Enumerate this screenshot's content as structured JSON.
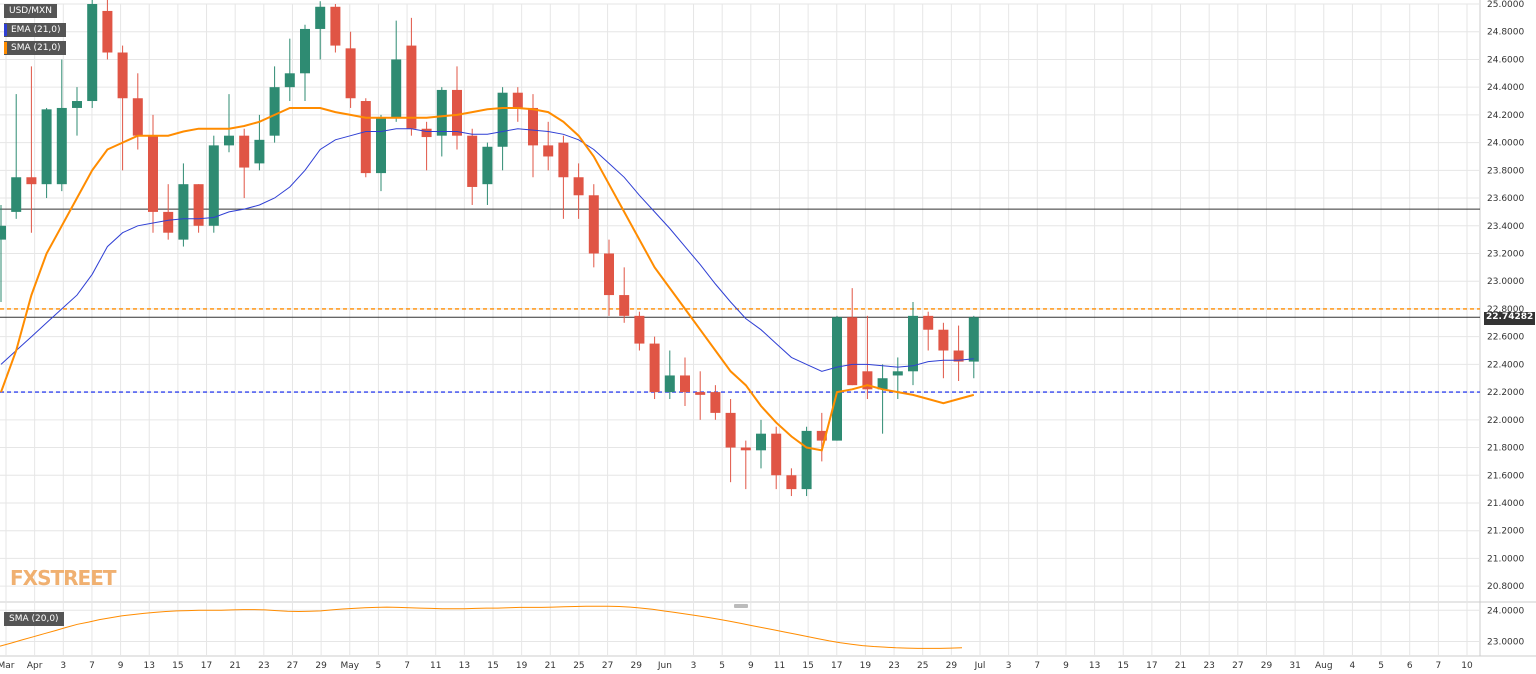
{
  "instrument": "USD/MXN",
  "indicators": [
    {
      "label": "EMA (21,0)",
      "color": "#2f3fd4"
    },
    {
      "label": "SMA (21,0)",
      "color": "#ff8c00"
    }
  ],
  "sub_indicator": {
    "label": "SMA (20,0)",
    "color": "#ff8c00"
  },
  "watermark": "FXSTREET",
  "price_label": "22.74282",
  "colors": {
    "up": "#2e8b72",
    "down": "#e05545",
    "grid": "#e6e6e6",
    "axis_text": "#333333"
  },
  "chart_data": [
    {
      "type": "candlestick",
      "title": "",
      "ylim": [
        20.7,
        25.0
      ],
      "y_ticks": [
        "25.0000",
        "24.8000",
        "24.6000",
        "24.4000",
        "24.2000",
        "24.0000",
        "23.8000",
        "23.6000",
        "23.4000",
        "23.2000",
        "23.0000",
        "22.8000",
        "22.6000",
        "22.4000",
        "22.2000",
        "22.0000",
        "21.8000",
        "21.6000",
        "21.4000",
        "21.2000",
        "21.0000",
        "20.8000"
      ],
      "x_tick_labels": [
        "Mar",
        "Apr",
        "3",
        "7",
        "9",
        "13",
        "15",
        "17",
        "21",
        "23",
        "27",
        "29",
        "May",
        "5",
        "7",
        "11",
        "13",
        "15",
        "19",
        "21",
        "25",
        "27",
        "29",
        "Jun",
        "3",
        "5",
        "9",
        "11",
        "15",
        "17",
        "19",
        "23",
        "25",
        "29",
        "Jul",
        "3",
        "7",
        "9",
        "13",
        "15",
        "17",
        "21",
        "23",
        "27",
        "29",
        "31",
        "Aug",
        "4",
        "5",
        "6",
        "7",
        "10"
      ],
      "candles": [
        {
          "o": 23.3,
          "h": 23.55,
          "l": 22.85,
          "c": 23.4
        },
        {
          "o": 23.5,
          "h": 24.35,
          "l": 23.45,
          "c": 23.75
        },
        {
          "o": 23.75,
          "h": 24.55,
          "l": 23.35,
          "c": 23.7
        },
        {
          "o": 23.7,
          "h": 24.25,
          "l": 23.6,
          "c": 24.24
        },
        {
          "o": 23.7,
          "h": 24.6,
          "l": 23.65,
          "c": 24.25
        },
        {
          "o": 24.25,
          "h": 24.4,
          "l": 24.05,
          "c": 24.3
        },
        {
          "o": 24.3,
          "h": 25.05,
          "l": 24.25,
          "c": 25.0
        },
        {
          "o": 24.95,
          "h": 25.1,
          "l": 24.6,
          "c": 24.65
        },
        {
          "o": 24.65,
          "h": 24.7,
          "l": 23.8,
          "c": 24.32
        },
        {
          "o": 24.32,
          "h": 24.5,
          "l": 23.95,
          "c": 24.05
        },
        {
          "o": 24.05,
          "h": 24.2,
          "l": 23.35,
          "c": 23.5
        },
        {
          "o": 23.5,
          "h": 23.7,
          "l": 23.3,
          "c": 23.35
        },
        {
          "o": 23.3,
          "h": 23.85,
          "l": 23.25,
          "c": 23.7
        },
        {
          "o": 23.7,
          "h": 23.7,
          "l": 23.35,
          "c": 23.4
        },
        {
          "o": 23.4,
          "h": 24.05,
          "l": 23.35,
          "c": 23.98
        },
        {
          "o": 23.98,
          "h": 24.35,
          "l": 23.93,
          "c": 24.05
        },
        {
          "o": 24.05,
          "h": 24.1,
          "l": 23.6,
          "c": 23.82
        },
        {
          "o": 23.85,
          "h": 24.2,
          "l": 23.8,
          "c": 24.02
        },
        {
          "o": 24.05,
          "h": 24.55,
          "l": 24.0,
          "c": 24.4
        },
        {
          "o": 24.4,
          "h": 24.75,
          "l": 24.3,
          "c": 24.5
        },
        {
          "o": 24.5,
          "h": 24.85,
          "l": 24.3,
          "c": 24.82
        },
        {
          "o": 24.82,
          "h": 25.02,
          "l": 24.6,
          "c": 24.98
        },
        {
          "o": 24.98,
          "h": 25.0,
          "l": 24.65,
          "c": 24.7
        },
        {
          "o": 24.68,
          "h": 24.8,
          "l": 24.25,
          "c": 24.32
        },
        {
          "o": 24.3,
          "h": 24.32,
          "l": 23.75,
          "c": 23.78
        },
        {
          "o": 23.78,
          "h": 24.2,
          "l": 23.65,
          "c": 24.18
        },
        {
          "o": 24.18,
          "h": 24.88,
          "l": 24.15,
          "c": 24.6
        },
        {
          "o": 24.7,
          "h": 24.9,
          "l": 24.05,
          "c": 24.1
        },
        {
          "o": 24.1,
          "h": 24.15,
          "l": 23.8,
          "c": 24.04
        },
        {
          "o": 24.05,
          "h": 24.4,
          "l": 23.9,
          "c": 24.38
        },
        {
          "o": 24.38,
          "h": 24.55,
          "l": 23.95,
          "c": 24.05
        },
        {
          "o": 24.05,
          "h": 24.1,
          "l": 23.55,
          "c": 23.68
        },
        {
          "o": 23.7,
          "h": 24.0,
          "l": 23.55,
          "c": 23.97
        },
        {
          "o": 23.97,
          "h": 24.4,
          "l": 23.8,
          "c": 24.36
        },
        {
          "o": 24.36,
          "h": 24.4,
          "l": 24.15,
          "c": 24.25
        },
        {
          "o": 24.25,
          "h": 24.35,
          "l": 23.75,
          "c": 23.98
        },
        {
          "o": 23.98,
          "h": 24.15,
          "l": 23.8,
          "c": 23.9
        },
        {
          "o": 24.0,
          "h": 24.05,
          "l": 23.45,
          "c": 23.75
        },
        {
          "o": 23.75,
          "h": 23.85,
          "l": 23.45,
          "c": 23.62
        },
        {
          "o": 23.62,
          "h": 23.7,
          "l": 23.1,
          "c": 23.2
        },
        {
          "o": 23.2,
          "h": 23.3,
          "l": 22.75,
          "c": 22.9
        },
        {
          "o": 22.9,
          "h": 23.1,
          "l": 22.7,
          "c": 22.75
        },
        {
          "o": 22.75,
          "h": 22.78,
          "l": 22.5,
          "c": 22.55
        },
        {
          "o": 22.55,
          "h": 22.6,
          "l": 22.15,
          "c": 22.2
        },
        {
          "o": 22.2,
          "h": 22.5,
          "l": 22.15,
          "c": 22.32
        },
        {
          "o": 22.32,
          "h": 22.45,
          "l": 22.1,
          "c": 22.2
        },
        {
          "o": 22.2,
          "h": 22.35,
          "l": 22.0,
          "c": 22.18
        },
        {
          "o": 22.2,
          "h": 22.25,
          "l": 22.0,
          "c": 22.05
        },
        {
          "o": 22.05,
          "h": 22.15,
          "l": 21.55,
          "c": 21.8
        },
        {
          "o": 21.8,
          "h": 21.85,
          "l": 21.5,
          "c": 21.78
        },
        {
          "o": 21.78,
          "h": 22.0,
          "l": 21.65,
          "c": 21.9
        },
        {
          "o": 21.9,
          "h": 21.95,
          "l": 21.5,
          "c": 21.6
        },
        {
          "o": 21.6,
          "h": 21.65,
          "l": 21.45,
          "c": 21.5
        },
        {
          "o": 21.5,
          "h": 21.95,
          "l": 21.45,
          "c": 21.92
        },
        {
          "o": 21.92,
          "h": 22.05,
          "l": 21.7,
          "c": 21.85
        },
        {
          "o": 21.85,
          "h": 22.75,
          "l": 21.85,
          "c": 22.74
        },
        {
          "o": 22.74,
          "h": 22.95,
          "l": 22.25,
          "c": 22.25
        },
        {
          "o": 22.35,
          "h": 22.75,
          "l": 22.15,
          "c": 22.22
        },
        {
          "o": 22.22,
          "h": 22.4,
          "l": 21.9,
          "c": 22.3
        },
        {
          "o": 22.32,
          "h": 22.45,
          "l": 22.15,
          "c": 22.35
        },
        {
          "o": 22.35,
          "h": 22.85,
          "l": 22.25,
          "c": 22.75
        },
        {
          "o": 22.75,
          "h": 22.78,
          "l": 22.5,
          "c": 22.65
        },
        {
          "o": 22.65,
          "h": 22.7,
          "l": 22.3,
          "c": 22.5
        },
        {
          "o": 22.5,
          "h": 22.68,
          "l": 22.28,
          "c": 22.42
        },
        {
          "o": 22.42,
          "h": 22.75,
          "l": 22.3,
          "c": 22.74
        }
      ],
      "ema_21": [
        22.4,
        22.5,
        22.6,
        22.7,
        22.8,
        22.9,
        23.05,
        23.25,
        23.35,
        23.4,
        23.42,
        23.44,
        23.45,
        23.45,
        23.46,
        23.5,
        23.52,
        23.55,
        23.6,
        23.68,
        23.8,
        23.95,
        24.02,
        24.05,
        24.08,
        24.08,
        24.1,
        24.1,
        24.08,
        24.08,
        24.08,
        24.06,
        24.06,
        24.08,
        24.1,
        24.09,
        24.08,
        24.06,
        24.02,
        23.95,
        23.85,
        23.75,
        23.62,
        23.5,
        23.38,
        23.25,
        23.12,
        22.98,
        22.85,
        22.73,
        22.65,
        22.55,
        22.45,
        22.4,
        22.35,
        22.38,
        22.4,
        22.4,
        22.39,
        22.38,
        22.39,
        22.42,
        22.43,
        22.43,
        22.44
      ],
      "sma_21": [
        22.2,
        22.5,
        22.9,
        23.2,
        23.4,
        23.6,
        23.8,
        23.95,
        24.0,
        24.05,
        24.05,
        24.05,
        24.08,
        24.1,
        24.1,
        24.1,
        24.12,
        24.15,
        24.2,
        24.25,
        24.25,
        24.25,
        24.22,
        24.2,
        24.18,
        24.18,
        24.18,
        24.18,
        24.18,
        24.19,
        24.2,
        24.22,
        24.24,
        24.25,
        24.25,
        24.24,
        24.22,
        24.15,
        24.05,
        23.9,
        23.7,
        23.5,
        23.3,
        23.1,
        22.95,
        22.8,
        22.65,
        22.5,
        22.35,
        22.25,
        22.1,
        21.98,
        21.88,
        21.8,
        21.78,
        22.2,
        22.22,
        22.25,
        22.22,
        22.2,
        22.18,
        22.15,
        22.12,
        22.15,
        22.18
      ],
      "horizontal_lines": [
        {
          "value": 23.52,
          "style": "solid",
          "color": "#333333"
        },
        {
          "value": 22.8,
          "style": "dashed",
          "color": "#ff8c00"
        },
        {
          "value": 22.74,
          "style": "solid",
          "color": "#333333"
        },
        {
          "value": 22.2,
          "style": "dashed",
          "color": "#3344ee"
        }
      ]
    },
    {
      "type": "line",
      "title": "",
      "ylim": [
        22.6,
        24.2
      ],
      "y_ticks": [
        "24.0000",
        "23.0000"
      ],
      "values": [
        22.85,
        22.95,
        23.05,
        23.15,
        23.25,
        23.35,
        23.45,
        23.55,
        23.62,
        23.7,
        23.76,
        23.82,
        23.86,
        23.9,
        23.93,
        23.96,
        23.98,
        23.99,
        24.0,
        24.0,
        24.0,
        24.01,
        24.02,
        24.02,
        24.01,
        23.99,
        23.97,
        23.96,
        23.97,
        23.98,
        24.01,
        24.04,
        24.06,
        24.08,
        24.09,
        24.1,
        24.09,
        24.08,
        24.07,
        24.06,
        24.05,
        24.05,
        24.05,
        24.06,
        24.07,
        24.07,
        24.08,
        24.09,
        24.09,
        24.09,
        24.1,
        24.11,
        24.12,
        24.13,
        24.13,
        24.13,
        24.12,
        24.1,
        24.07,
        24.03,
        23.98,
        23.93,
        23.88,
        23.83,
        23.77,
        23.71,
        23.65,
        23.58,
        23.51,
        23.44,
        23.37,
        23.3,
        23.23,
        23.16,
        23.09,
        23.02,
        22.96,
        22.91,
        22.87,
        22.84,
        22.82,
        22.8,
        22.79,
        22.78,
        22.78,
        22.78,
        22.79,
        22.8
      ]
    }
  ]
}
